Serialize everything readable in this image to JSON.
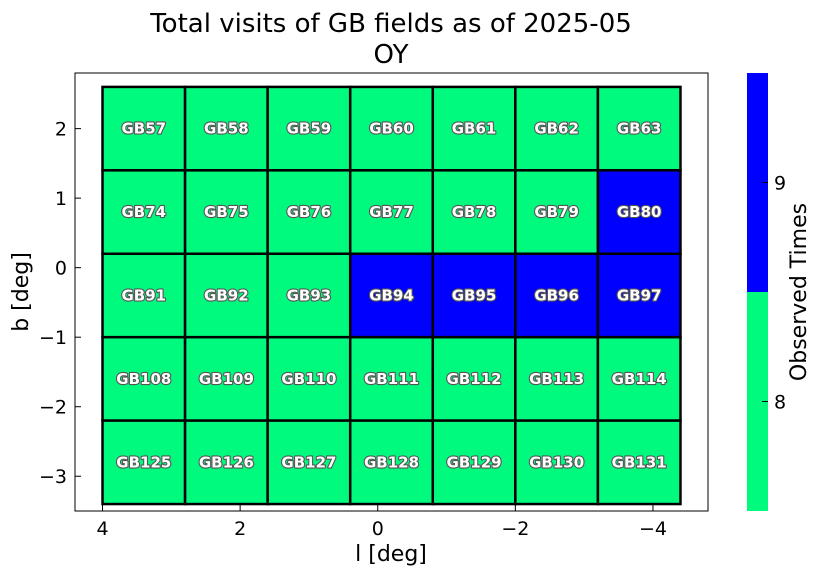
{
  "chart_data": {
    "type": "heatmap",
    "title": "Total visits of GB fields as of 2025-05",
    "subtitle": "OY",
    "xlabel": "l [deg]",
    "ylabel": "b [deg]",
    "xlim": [
      4.4,
      -4.8
    ],
    "ylim": [
      -3.5,
      2.8
    ],
    "x_ticks": [
      4,
      2,
      0,
      -2,
      -4
    ],
    "x_tick_labels": [
      "4",
      "2",
      "0",
      "−2",
      "−4"
    ],
    "y_ticks": [
      2,
      1,
      0,
      -1,
      -2,
      -3
    ],
    "y_tick_labels": [
      "2",
      "1",
      "0",
      "−1",
      "−2",
      "−3"
    ],
    "grid": false,
    "colorbar": {
      "label": "Observed Times",
      "range": [
        7.5,
        9.5
      ],
      "ticks": [
        8,
        9
      ],
      "tick_labels": [
        "8",
        "9"
      ],
      "colors": [
        {
          "value": 8,
          "color": "#00FA7D"
        },
        {
          "value": 9,
          "color": "#0000FF"
        }
      ]
    },
    "cell_width": 1.2,
    "cell_height": 1.2,
    "fields": [
      {
        "name": "GB57",
        "l": 3.4,
        "b": 2.0,
        "visits": 8
      },
      {
        "name": "GB58",
        "l": 2.2,
        "b": 2.0,
        "visits": 8
      },
      {
        "name": "GB59",
        "l": 1.0,
        "b": 2.0,
        "visits": 8
      },
      {
        "name": "GB60",
        "l": -0.2,
        "b": 2.0,
        "visits": 8
      },
      {
        "name": "GB61",
        "l": -1.4,
        "b": 2.0,
        "visits": 8
      },
      {
        "name": "GB62",
        "l": -2.6,
        "b": 2.0,
        "visits": 8
      },
      {
        "name": "GB63",
        "l": -3.8,
        "b": 2.0,
        "visits": 8
      },
      {
        "name": "GB74",
        "l": 3.4,
        "b": 0.8,
        "visits": 8
      },
      {
        "name": "GB75",
        "l": 2.2,
        "b": 0.8,
        "visits": 8
      },
      {
        "name": "GB76",
        "l": 1.0,
        "b": 0.8,
        "visits": 8
      },
      {
        "name": "GB77",
        "l": -0.2,
        "b": 0.8,
        "visits": 8
      },
      {
        "name": "GB78",
        "l": -1.4,
        "b": 0.8,
        "visits": 8
      },
      {
        "name": "GB79",
        "l": -2.6,
        "b": 0.8,
        "visits": 8
      },
      {
        "name": "GB80",
        "l": -3.8,
        "b": 0.8,
        "visits": 9
      },
      {
        "name": "GB91",
        "l": 3.4,
        "b": -0.4,
        "visits": 8
      },
      {
        "name": "GB92",
        "l": 2.2,
        "b": -0.4,
        "visits": 8
      },
      {
        "name": "GB93",
        "l": 1.0,
        "b": -0.4,
        "visits": 8
      },
      {
        "name": "GB94",
        "l": -0.2,
        "b": -0.4,
        "visits": 9
      },
      {
        "name": "GB95",
        "l": -1.4,
        "b": -0.4,
        "visits": 9
      },
      {
        "name": "GB96",
        "l": -2.6,
        "b": -0.4,
        "visits": 9
      },
      {
        "name": "GB97",
        "l": -3.8,
        "b": -0.4,
        "visits": 9
      },
      {
        "name": "GB108",
        "l": 3.4,
        "b": -1.6,
        "visits": 8
      },
      {
        "name": "GB109",
        "l": 2.2,
        "b": -1.6,
        "visits": 8
      },
      {
        "name": "GB110",
        "l": 1.0,
        "b": -1.6,
        "visits": 8
      },
      {
        "name": "GB111",
        "l": -0.2,
        "b": -1.6,
        "visits": 8
      },
      {
        "name": "GB112",
        "l": -1.4,
        "b": -1.6,
        "visits": 8
      },
      {
        "name": "GB113",
        "l": -2.6,
        "b": -1.6,
        "visits": 8
      },
      {
        "name": "GB114",
        "l": -3.8,
        "b": -1.6,
        "visits": 8
      },
      {
        "name": "GB125",
        "l": 3.4,
        "b": -2.8,
        "visits": 8
      },
      {
        "name": "GB126",
        "l": 2.2,
        "b": -2.8,
        "visits": 8
      },
      {
        "name": "GB127",
        "l": 1.0,
        "b": -2.8,
        "visits": 8
      },
      {
        "name": "GB128",
        "l": -0.2,
        "b": -2.8,
        "visits": 8
      },
      {
        "name": "GB129",
        "l": -1.4,
        "b": -2.8,
        "visits": 8
      },
      {
        "name": "GB130",
        "l": -2.6,
        "b": -2.8,
        "visits": 8
      },
      {
        "name": "GB131",
        "l": -3.8,
        "b": -2.8,
        "visits": 8
      }
    ]
  }
}
